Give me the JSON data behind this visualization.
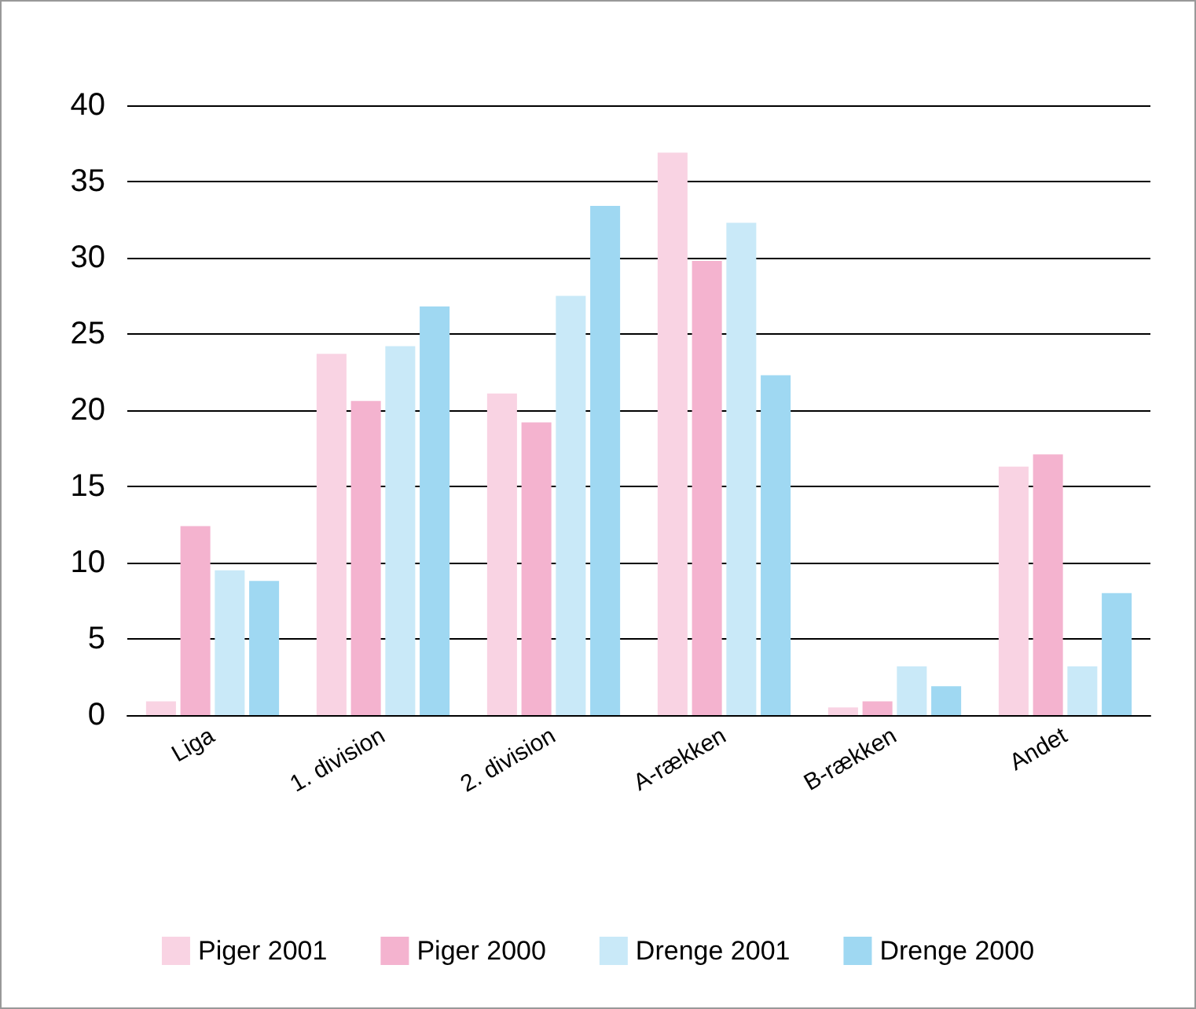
{
  "chart_data": {
    "type": "bar",
    "categories": [
      "Liga",
      "1. division",
      "2. division",
      "A-rækken",
      "B-rækken",
      "Andet"
    ],
    "series": [
      {
        "name": "Piger 2001",
        "color": "#f9d3e3",
        "values": [
          0.9,
          23.7,
          21.1,
          36.9,
          0.5,
          16.3
        ]
      },
      {
        "name": "Piger 2000",
        "color": "#f4b3cf",
        "values": [
          12.4,
          20.6,
          19.2,
          29.8,
          0.9,
          17.1
        ]
      },
      {
        "name": "Drenge 2001",
        "color": "#c9e9f8",
        "values": [
          9.5,
          24.2,
          27.5,
          32.3,
          3.2,
          3.2
        ]
      },
      {
        "name": "Drenge 2000",
        "color": "#9fd8f2",
        "values": [
          8.8,
          26.8,
          33.4,
          22.3,
          1.9,
          8.0
        ]
      }
    ],
    "ylim": [
      0,
      40
    ],
    "yticks": [
      0,
      5,
      10,
      15,
      20,
      25,
      30,
      35,
      40
    ],
    "grid": "y",
    "legend": "bottom"
  }
}
